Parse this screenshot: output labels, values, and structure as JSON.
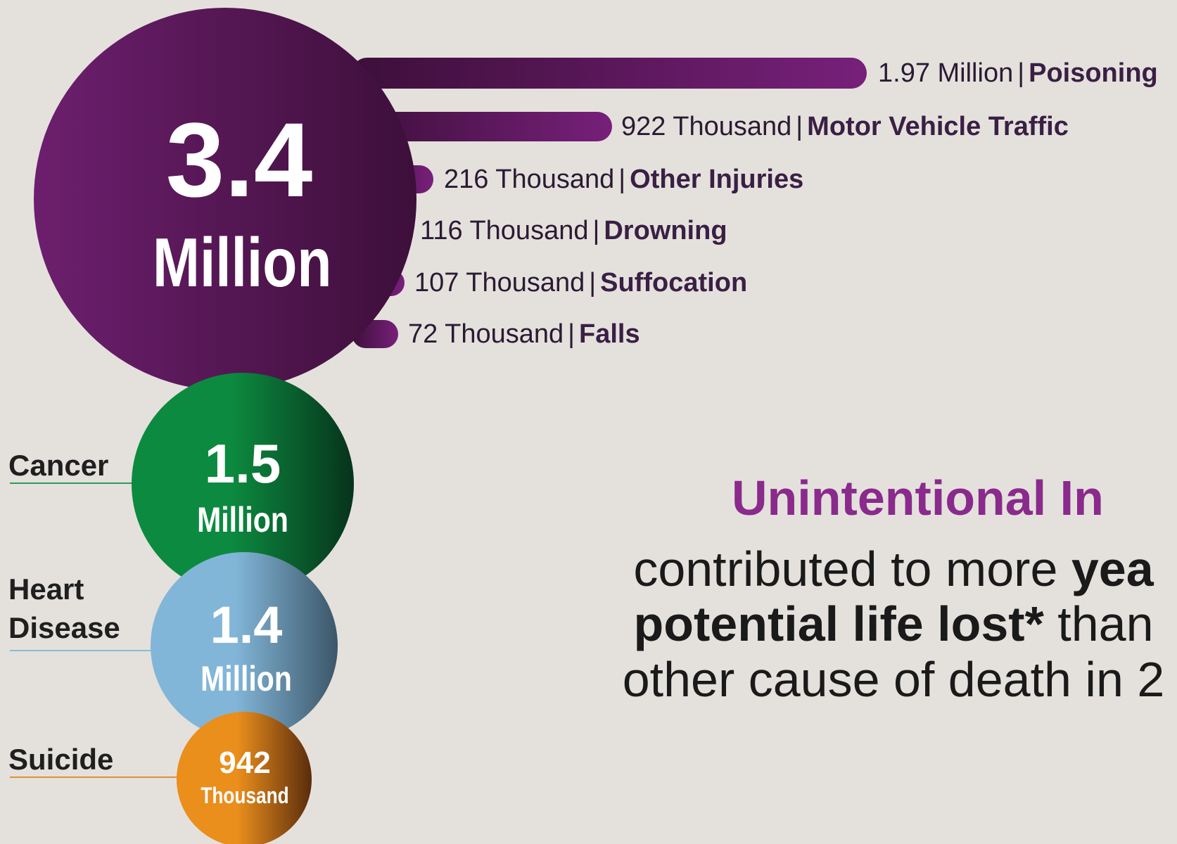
{
  "chart_data": {
    "type": "bar",
    "total": {
      "value": "3.4",
      "unit": "Million",
      "color_dark": "#3d0f3a",
      "color_light": "#6d1f6e"
    },
    "bars": [
      {
        "value_label": "1.97 Million",
        "name": "Poisoning",
        "value": 1970000
      },
      {
        "value_label": "922 Thousand",
        "name": "Motor Vehicle Traffic",
        "value": 922000
      },
      {
        "value_label": "216 Thousand",
        "name": "Other Injuries",
        "value": 216000
      },
      {
        "value_label": "116 Thousand",
        "name": "Drowning",
        "value": 116000
      },
      {
        "value_label": "107 Thousand",
        "name": "Suffocation",
        "value": 107000
      },
      {
        "value_label": "72 Thousand",
        "name": "Falls",
        "value": 72000
      }
    ],
    "separator": "|",
    "comparison": [
      {
        "label": "Cancer",
        "value": "1.5",
        "unit": "Million",
        "value_num": 1500000,
        "color_light": "#0c8a3f",
        "color_dark": "#07331c",
        "line_color": "#2c9a55"
      },
      {
        "label": "Heart Disease",
        "value": "1.4",
        "unit": "Million",
        "value_num": 1400000,
        "color_light": "#82b6d8",
        "color_dark": "#3c5668",
        "line_color": "#8ab9d6"
      },
      {
        "label": "Suicide",
        "value": "942",
        "unit": "Thousand",
        "value_num": 942000,
        "color_light": "#ea8e1c",
        "color_dark": "#5a2c0c",
        "line_color": "#e08f38"
      }
    ]
  },
  "text": {
    "headline": "Unintentional In",
    "line1_plain": "contributed to more ",
    "line1_bold": "yea",
    "line2_bold": "potential life lost*",
    "line2_plain": " than",
    "line3_plain": "other cause of death in 2"
  },
  "colors": {
    "background": "#e4e1dc",
    "headline": "#8a2a8c"
  }
}
